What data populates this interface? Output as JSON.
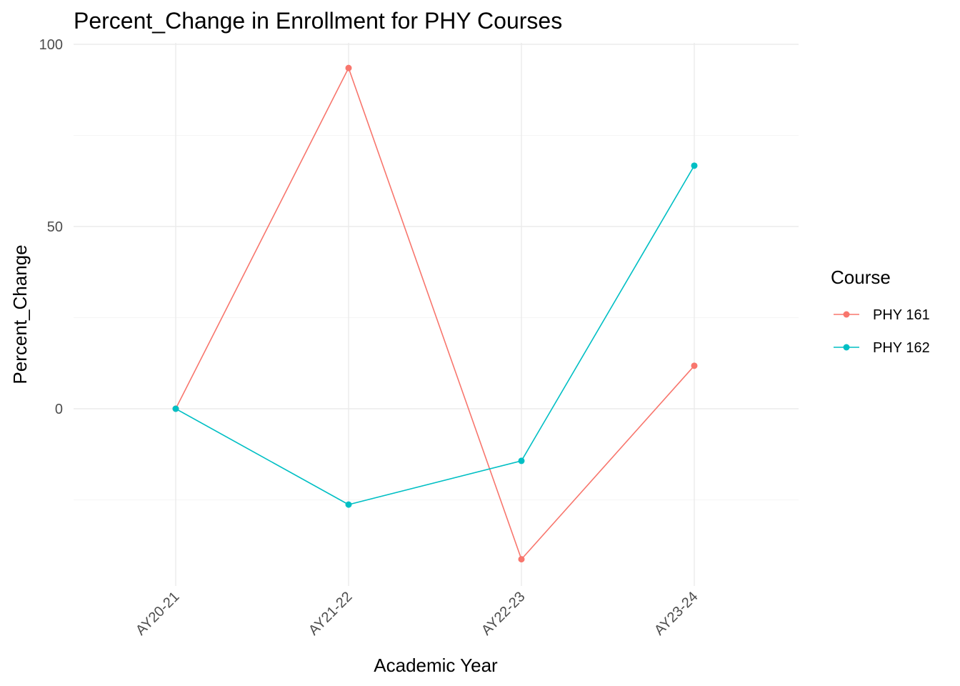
{
  "chart_data": {
    "type": "line",
    "title": "Percent_Change in Enrollment for PHY Courses",
    "xlabel": "Academic Year",
    "ylabel": "Percent_Change",
    "categories": [
      "AY20-21",
      "AY21-22",
      "AY22-23",
      "AY23-24"
    ],
    "ylim": [
      -48,
      100
    ],
    "yticks": [
      0,
      50,
      100
    ],
    "grid": true,
    "legend": {
      "title": "Course",
      "position": "right"
    },
    "series": [
      {
        "name": "PHY 161",
        "color": "#F8766D",
        "values": [
          0,
          93.5,
          -41.3,
          11.8
        ]
      },
      {
        "name": "PHY 162",
        "color": "#00BFC4",
        "values": [
          0,
          -26.3,
          -14.3,
          66.7
        ]
      }
    ]
  }
}
